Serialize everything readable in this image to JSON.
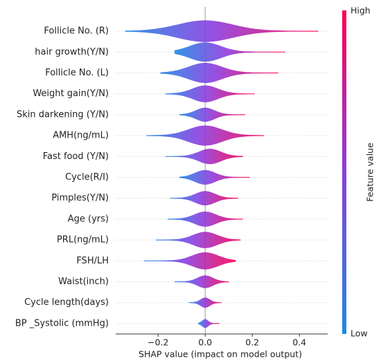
{
  "chart_data": {
    "type": "violin",
    "categories": [
      "Follicle No. (R)",
      "hair growth(Y/N)",
      "Follicle No. (L)",
      "Weight gain(Y/N)",
      "Skin darkening (Y/N)",
      "AMH(ng/mL)",
      "Fast food (Y/N)",
      "Cycle(R/I)",
      "Pimples(Y/N)",
      "Age (yrs)",
      "PRL(ng/mL)",
      "FSH/LH",
      "Waist(inch)",
      "Cycle length(days)",
      "BP _Systolic (mmHg)"
    ],
    "min_values": [
      -0.34,
      -0.13,
      -0.19,
      -0.17,
      -0.11,
      -0.25,
      -0.17,
      -0.11,
      -0.15,
      -0.16,
      -0.21,
      -0.26,
      -0.13,
      -0.07,
      -0.03
    ],
    "max_values": [
      0.48,
      0.34,
      0.31,
      0.21,
      0.17,
      0.25,
      0.16,
      0.19,
      0.14,
      0.16,
      0.15,
      0.13,
      0.1,
      0.07,
      0.06
    ],
    "mode_values": [
      0.0,
      0.0,
      0.0,
      0.0,
      0.0,
      0.0,
      0.02,
      0.0,
      0.0,
      0.0,
      0.0,
      0.0,
      0.0,
      0.0,
      0.0
    ],
    "xlabel": "SHAP value (impact on model output)",
    "xlim": [
      -0.38,
      0.52
    ],
    "xticks": [
      {
        "value": -0.2,
        "label": "−0.2"
      },
      {
        "value": 0,
        "label": "0.0"
      },
      0.2,
      0.4
    ],
    "colorbar": {
      "label": "Feature value",
      "high": "High",
      "low": "Low",
      "low_color": "#1e88e5",
      "high_color": "#ff0052"
    }
  }
}
